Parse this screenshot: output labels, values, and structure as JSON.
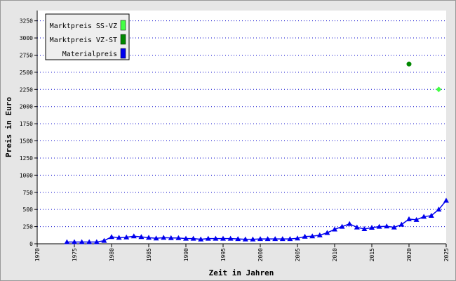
{
  "chart_data": {
    "type": "line",
    "x_label": "Zeit in Jahren",
    "y_label": "Preis in Euro",
    "xlim": [
      1970,
      2025
    ],
    "xticks": [
      1970,
      1975,
      1980,
      1985,
      1990,
      1995,
      2000,
      2005,
      2010,
      2015,
      2020,
      2025
    ],
    "ylim": [
      0,
      3400
    ],
    "yticks": [
      0,
      250,
      500,
      750,
      1000,
      1250,
      1500,
      1750,
      2000,
      2250,
      2500,
      2750,
      3000,
      3250
    ],
    "grid": true,
    "legend": "top-left",
    "series": [
      {
        "name": "Marktpreis SS-VZ",
        "color": "#44ff44",
        "marker": "diamond",
        "line": false,
        "x": [
          2024
        ],
        "values": [
          2250
        ]
      },
      {
        "name": "Marktpreis VZ-ST",
        "color": "#008800",
        "marker": "circle",
        "line": false,
        "x": [
          2020
        ],
        "values": [
          2620
        ]
      },
      {
        "name": "Materialpreis",
        "color": "#0000ee",
        "marker": "triangle",
        "line": true,
        "x": [
          1974,
          1975,
          1976,
          1977,
          1978,
          1979,
          1980,
          1981,
          1982,
          1983,
          1984,
          1985,
          1986,
          1987,
          1988,
          1989,
          1990,
          1991,
          1992,
          1993,
          1994,
          1995,
          1996,
          1997,
          1998,
          1999,
          2000,
          2001,
          2002,
          2003,
          2004,
          2005,
          2006,
          2007,
          2008,
          2009,
          2010,
          2011,
          2012,
          2013,
          2014,
          2015,
          2016,
          2017,
          2018,
          2019,
          2020,
          2021,
          2022,
          2023,
          2024,
          2025
        ],
        "values": [
          25,
          25,
          25,
          25,
          25,
          45,
          100,
          90,
          95,
          110,
          100,
          90,
          80,
          90,
          85,
          85,
          75,
          75,
          65,
          75,
          75,
          75,
          75,
          70,
          65,
          65,
          70,
          70,
          70,
          70,
          70,
          80,
          105,
          110,
          125,
          160,
          210,
          250,
          290,
          240,
          215,
          235,
          250,
          255,
          240,
          280,
          360,
          350,
          395,
          410,
          500,
          630
        ]
      }
    ]
  }
}
